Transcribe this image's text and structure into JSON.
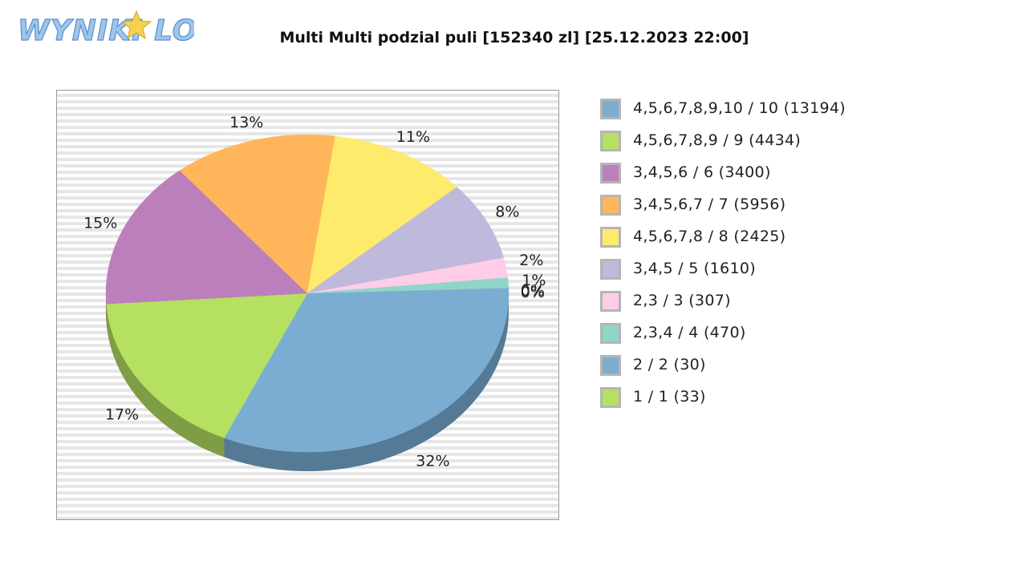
{
  "logo": {
    "text": "WYNIKI LOTTO"
  },
  "chart_data": {
    "type": "pie",
    "title": "Multi Multi podzial puli [152340 zl] [25.12.2023 22:00]",
    "slices": [
      {
        "label": "4,5,6,7,8,9,10 / 10 (13194)",
        "value": 32,
        "pct_label": "32%",
        "color": "#7badd3",
        "side_color": "#557a96"
      },
      {
        "label": "4,5,6,7,8,9 / 9 (4434)",
        "value": 17,
        "pct_label": "17%",
        "color": "#b5e061",
        "side_color": "#7f9d44"
      },
      {
        "label": "3,4,5,6 / 6 (3400)",
        "value": 15,
        "pct_label": "15%",
        "color": "#bb7fbb",
        "side_color": "#835983"
      },
      {
        "label": "3,4,5,6,7 / 7 (5956)",
        "value": 13,
        "pct_label": "13%",
        "color": "#ffb65a",
        "side_color": "#b3803f"
      },
      {
        "label": "4,5,6,7,8 / 8 (2425)",
        "value": 11,
        "pct_label": "11%",
        "color": "#ffeb6b",
        "side_color": "#b3a54b"
      },
      {
        "label": "3,4,5 / 5 (1610)",
        "value": 8,
        "pct_label": "8%",
        "color": "#bfb9db",
        "side_color": "#86829a"
      },
      {
        "label": "2,3 / 3 (307)",
        "value": 2,
        "pct_label": "2%",
        "color": "#ffcde8",
        "side_color": "#b390a3"
      },
      {
        "label": "2,3,4 / 4 (470)",
        "value": 1,
        "pct_label": "1%",
        "color": "#8fd6c8",
        "side_color": "#64968c"
      },
      {
        "label": "2 / 2 (30)",
        "value": 0,
        "pct_label": "0%",
        "color": "#7badd3",
        "side_color": "#557a96"
      },
      {
        "label": "1 / 1 (33)",
        "value": 0,
        "pct_label": "0%",
        "color": "#b5e061",
        "side_color": "#7f9d44"
      }
    ],
    "legend_position": "right",
    "background": "horizontal-stripes"
  }
}
